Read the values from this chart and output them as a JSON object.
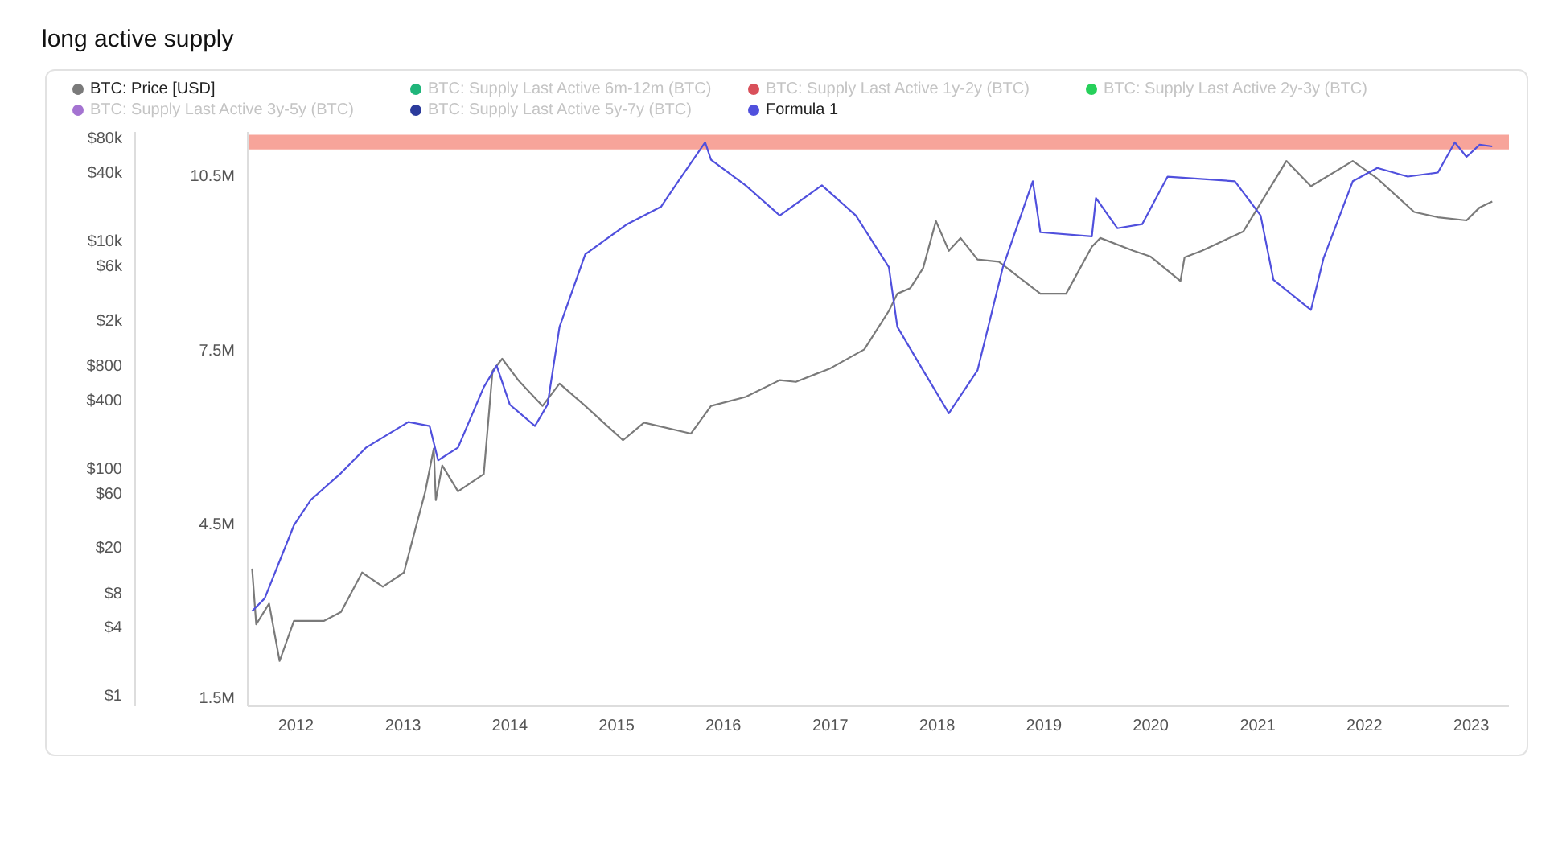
{
  "chart_data": {
    "type": "line",
    "title": "long active supply",
    "legend": "top",
    "xlim": [
      "2011-07-20",
      "2023-05-10"
    ],
    "xticks": [
      "2012",
      "2013",
      "2014",
      "2015",
      "2016",
      "2017",
      "2018",
      "2019",
      "2020",
      "2021",
      "2022",
      "2023"
    ],
    "ylim": [
      1350000,
      11250000
    ],
    "yticks": [
      {
        "value": 1500000,
        "label": "1.5M"
      },
      {
        "value": 4500000,
        "label": "4.5M"
      },
      {
        "value": 7500000,
        "label": "7.5M"
      },
      {
        "value": 10500000,
        "label": "10.5M"
      }
    ],
    "y2lim": [
      0.8,
      90000
    ],
    "log": "y2",
    "y2ticks": [
      {
        "value": 1,
        "label": "$1"
      },
      {
        "value": 4,
        "label": "$4"
      },
      {
        "value": 8,
        "label": "$8"
      },
      {
        "value": 20,
        "label": "$20"
      },
      {
        "value": 60,
        "label": "$60"
      },
      {
        "value": 100,
        "label": "$100"
      },
      {
        "value": 400,
        "label": "$400"
      },
      {
        "value": 800,
        "label": "$800"
      },
      {
        "value": 2000,
        "label": "$2k"
      },
      {
        "value": 6000,
        "label": "$6k"
      },
      {
        "value": 10000,
        "label": "$10k"
      },
      {
        "value": 40000,
        "label": "$40k"
      },
      {
        "value": 80000,
        "label": "$80k"
      }
    ],
    "bands": [
      {
        "axis": "y",
        "from": 10950000,
        "to": 11200000,
        "color": "#f7a49a"
      }
    ],
    "series": [
      {
        "name": "BTC: Price [USD]",
        "color": "#7a7a7a",
        "axis": "y2",
        "x": [
          "2011-08-04",
          "2011-08-18",
          "2011-10-01",
          "2011-11-06",
          "2011-12-25",
          "2012-02-06",
          "2012-04-05",
          "2012-06-03",
          "2012-08-14",
          "2012-10-24",
          "2013-01-04",
          "2013-03-18",
          "2013-04-16",
          "2013-04-23",
          "2013-05-15",
          "2013-07-08",
          "2013-10-04",
          "2013-11-03",
          "2013-12-06",
          "2014-01-30",
          "2014-04-23",
          "2014-06-20",
          "2014-09-16",
          "2015-01-23",
          "2015-04-05",
          "2015-09-12",
          "2015-11-20",
          "2016-03-17",
          "2016-07-12",
          "2016-09-05",
          "2017-01-01",
          "2017-04-27",
          "2017-07-20",
          "2017-08-18",
          "2017-10-01",
          "2017-11-14",
          "2017-12-28",
          "2018-02-10",
          "2018-03-22",
          "2018-05-19",
          "2018-07-31",
          "2018-12-20",
          "2019-03-18",
          "2019-06-14",
          "2019-07-13",
          "2019-11-03",
          "2020-01-01",
          "2020-04-12",
          "2020-04-26",
          "2020-06-24",
          "2020-11-13",
          "2021-02-24",
          "2021-04-09",
          "2021-07-02",
          "2021-11-22",
          "2022-02-14",
          "2022-06-20",
          "2022-09-09",
          "2022-12-16",
          "2023-01-30",
          "2023-03-14"
        ],
        "values": [
          13,
          4.2,
          6.4,
          2,
          4.5,
          4.5,
          4.5,
          5.4,
          12,
          9,
          12,
          62,
          148,
          52,
          105,
          62,
          88,
          710,
          910,
          590,
          350,
          550,
          350,
          175,
          250,
          200,
          350,
          420,
          590,
          570,
          750,
          1100,
          2400,
          3400,
          3800,
          5700,
          14800,
          8100,
          10500,
          6800,
          6500,
          3400,
          3400,
          8800,
          10500,
          8100,
          7200,
          4400,
          7100,
          8100,
          12000,
          32600,
          50000,
          30000,
          50000,
          35000,
          17800,
          16000,
          15000,
          19500,
          22000
        ]
      },
      {
        "name": "BTC: Supply Last Active 6m-12m (BTC)",
        "color": "#1fb57a"
      },
      {
        "name": "BTC: Supply Last Active 1y-2y (BTC)",
        "color": "#d9505a"
      },
      {
        "name": "BTC: Supply Last Active 2y-3y (BTC)",
        "color": "#26d05a"
      },
      {
        "name": "BTC: Supply Last Active 3y-5y (BTC)",
        "color": "#a473d1"
      },
      {
        "name": "BTC: Supply Last Active 5y-7y (BTC)",
        "color": "#2b3b9c"
      },
      {
        "name": "Formula 1",
        "color": "#5050dd",
        "x": [
          "2011-08-04",
          "2011-09-16",
          "2011-12-25",
          "2012-02-21",
          "2012-06-03",
          "2012-08-28",
          "2013-01-19",
          "2013-04-02",
          "2013-05-01",
          "2013-07-08",
          "2013-10-04",
          "2013-11-17",
          "2014-01-01",
          "2014-03-28",
          "2014-05-10",
          "2014-06-20",
          "2014-09-16",
          "2015-02-06",
          "2015-06-02",
          "2015-07-31",
          "2015-10-31",
          "2015-11-20",
          "2016-03-17",
          "2016-07-12",
          "2016-12-03",
          "2017-03-29",
          "2017-07-20",
          "2017-08-18",
          "2017-11-14",
          "2018-02-10",
          "2018-05-19",
          "2018-08-14",
          "2018-11-24",
          "2018-12-20",
          "2019-06-14",
          "2019-06-28",
          "2019-09-09",
          "2019-12-03",
          "2020-02-28",
          "2020-10-15",
          "2021-01-11",
          "2021-02-24",
          "2021-07-02",
          "2021-08-14",
          "2021-11-22",
          "2022-02-14",
          "2022-05-29",
          "2022-09-09",
          "2022-11-06",
          "2022-12-16",
          "2023-01-30",
          "2023-03-14"
        ],
        "values": [
          2990000,
          3210000,
          4470000,
          4910000,
          5370000,
          5810000,
          6250000,
          6180000,
          5590000,
          5810000,
          6850000,
          7220000,
          6550000,
          6180000,
          6550000,
          7890000,
          9140000,
          9660000,
          9960000,
          10400000,
          11070000,
          10770000,
          10330000,
          9810000,
          10330000,
          9810000,
          8920000,
          7890000,
          7140000,
          6400000,
          7140000,
          8920000,
          10400000,
          9520000,
          9450000,
          10110000,
          9590000,
          9660000,
          10480000,
          10400000,
          9810000,
          8700000,
          8180000,
          9070000,
          10400000,
          10630000,
          10480000,
          10550000,
          11070000,
          10820000,
          11030000,
          11000000
        ]
      }
    ]
  }
}
